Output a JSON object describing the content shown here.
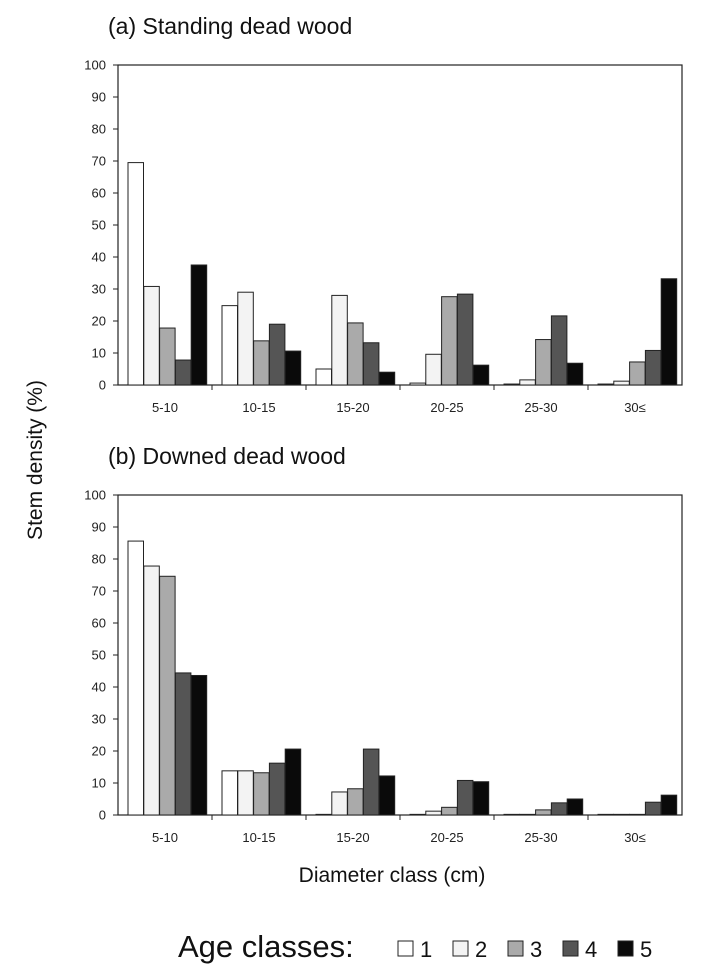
{
  "figure": {
    "ylabel": "Stem density (%)",
    "xlabel": "Diameter class (cm)",
    "legend_title": "Age classes:",
    "legend_labels": [
      "1",
      "2",
      "3",
      "4",
      "5"
    ],
    "series_colors": [
      "#ffffff",
      "#f3f3f3",
      "#aaaaaa",
      "#555555",
      "#0a0a0a"
    ]
  },
  "chart_data": [
    {
      "type": "bar",
      "title": "(a) Standing dead wood",
      "xlabel": "",
      "ylabel": "",
      "categories": [
        "5-10",
        "10-15",
        "15-20",
        "20-25",
        "25-30",
        "30≤"
      ],
      "ylim": [
        0,
        100
      ],
      "yticks": [
        0,
        10,
        20,
        30,
        40,
        50,
        60,
        70,
        80,
        90,
        100
      ],
      "series": [
        {
          "name": "1",
          "values": [
            69.5,
            24.8,
            5.0,
            0.6,
            0.3,
            0.3
          ]
        },
        {
          "name": "2",
          "values": [
            30.8,
            29.0,
            28.0,
            9.6,
            1.6,
            1.2
          ]
        },
        {
          "name": "3",
          "values": [
            17.8,
            13.8,
            19.4,
            27.6,
            14.2,
            7.2
          ]
        },
        {
          "name": "4",
          "values": [
            7.8,
            19.0,
            13.2,
            28.4,
            21.6,
            10.8
          ]
        },
        {
          "name": "5",
          "values": [
            37.5,
            10.6,
            4.0,
            6.2,
            6.8,
            33.2
          ]
        }
      ]
    },
    {
      "type": "bar",
      "title": "(b) Downed dead wood",
      "xlabel": "Diameter class (cm)",
      "ylabel": "",
      "categories": [
        "5-10",
        "10-15",
        "15-20",
        "20-25",
        "25-30",
        "30≤"
      ],
      "ylim": [
        0,
        100
      ],
      "yticks": [
        0,
        10,
        20,
        30,
        40,
        50,
        60,
        70,
        80,
        90,
        100
      ],
      "series": [
        {
          "name": "1",
          "values": [
            85.6,
            13.8,
            0.2,
            0.2,
            0.2,
            0.2
          ]
        },
        {
          "name": "2",
          "values": [
            77.8,
            13.8,
            7.2,
            1.2,
            0.2,
            0.2
          ]
        },
        {
          "name": "3",
          "values": [
            74.6,
            13.2,
            8.2,
            2.4,
            1.6,
            0.2
          ]
        },
        {
          "name": "4",
          "values": [
            44.4,
            16.2,
            20.6,
            10.8,
            3.8,
            4.0
          ]
        },
        {
          "name": "5",
          "values": [
            43.6,
            20.6,
            12.2,
            10.4,
            5.0,
            6.2
          ]
        }
      ]
    }
  ]
}
